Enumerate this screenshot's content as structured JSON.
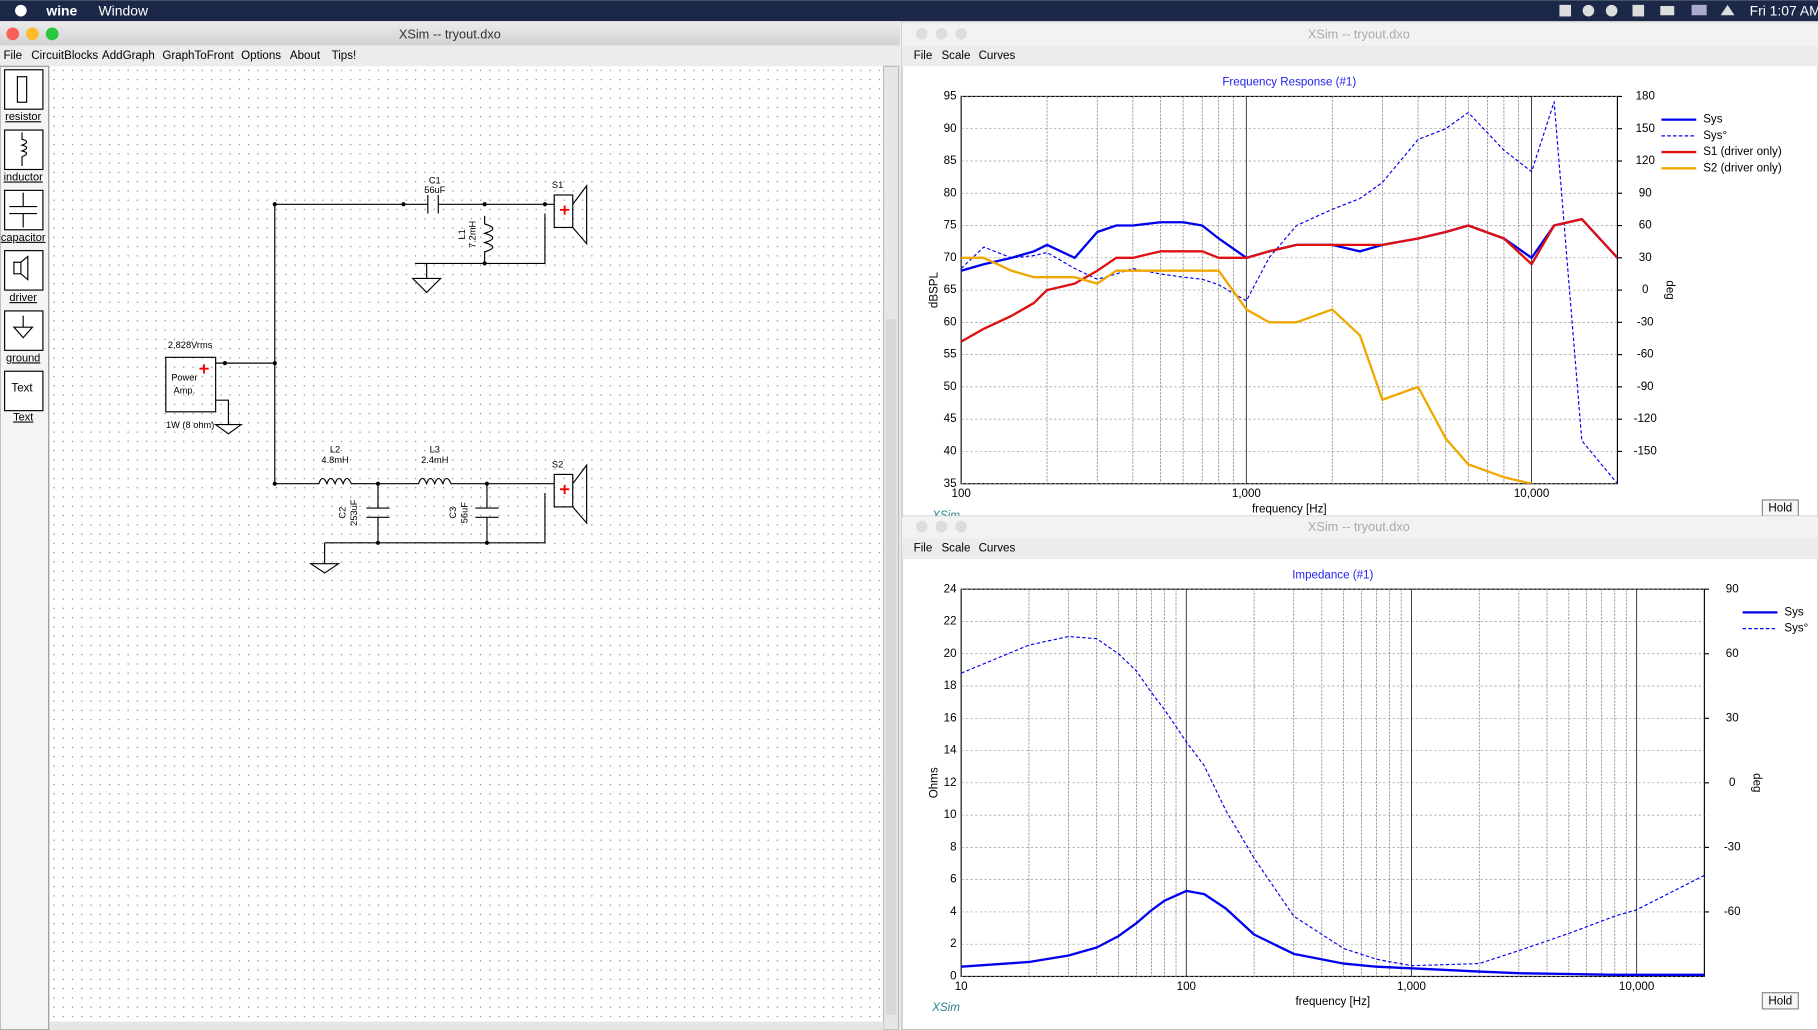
{
  "menubar": {
    "app": "wine",
    "items": [
      "Window"
    ],
    "clock": "Fri 1:07 AM"
  },
  "schematic_window": {
    "title": "XSim -- tryout.dxo",
    "menu": [
      "File",
      "CircuitBlocks",
      "AddGraph",
      "GraphToFront",
      "Options",
      "About",
      "Tips!"
    ],
    "palette": [
      "resistor",
      "inductor",
      "capacitor",
      "driver",
      "ground",
      "Text"
    ],
    "palette_text_icon": "Text",
    "components": {
      "c1": {
        "label": "C1",
        "value": "56uF"
      },
      "l1": {
        "label": "L1",
        "value": "7.2mH"
      },
      "s1": {
        "label": "S1"
      },
      "l2": {
        "label": "L2",
        "value": "4.8mH"
      },
      "l3": {
        "label": "L3",
        "value": "2.4mH"
      },
      "c2": {
        "label": "C2",
        "value": "253uF"
      },
      "c3": {
        "label": "C3",
        "value": "56uF"
      },
      "s2": {
        "label": "S2"
      }
    },
    "source": {
      "voltage": "2.828Vrms",
      "label_line1": "Power",
      "label_line2": "Amp.",
      "load": "1W (8 ohm)"
    }
  },
  "graph_windows": [
    {
      "title": "XSim -- tryout.dxo",
      "menu": [
        "File",
        "Scale",
        "Curves"
      ],
      "button": "Hold",
      "watermark": "XSim"
    },
    {
      "title": "XSim -- tryout.dxo",
      "menu": [
        "File",
        "Scale",
        "Curves"
      ],
      "button": "Hold",
      "watermark": "XSim"
    }
  ],
  "chart_data": [
    {
      "type": "line",
      "title": "Frequency Response (#1)",
      "x_label": "frequency [Hz]",
      "y_label": "dBSPL",
      "y2_label": "deg",
      "log_x": true,
      "grid": true,
      "legend": "right",
      "xlim": [
        100,
        20000
      ],
      "xticks": [
        100,
        {
          "value": 1000,
          "label": "1,000"
        },
        {
          "value": 10000,
          "label": "10,000"
        }
      ],
      "ylim": [
        35,
        95
      ],
      "yticks": [
        35,
        40,
        45,
        50,
        55,
        60,
        65,
        70,
        75,
        80,
        85,
        90,
        95
      ],
      "y2lim": [
        -180,
        180
      ],
      "y2ticks": [
        -150,
        -120,
        -90,
        -60,
        -30,
        0,
        30,
        60,
        90,
        120,
        150,
        180
      ],
      "x": [
        100,
        120,
        150,
        180,
        200,
        250,
        300,
        350,
        400,
        500,
        600,
        700,
        800,
        1000,
        1200,
        1500,
        2000,
        2500,
        3000,
        4000,
        5000,
        6000,
        8000,
        10000,
        12000,
        15000,
        20000
      ],
      "series": [
        {
          "name": "Sys",
          "color": "#0000ee",
          "width": 2,
          "values": [
            68,
            69,
            70,
            71,
            72,
            70,
            74,
            75,
            75,
            75.5,
            75.5,
            75,
            73,
            70,
            71,
            72,
            72,
            71,
            72,
            73,
            74,
            75,
            73,
            70,
            75,
            76,
            70
          ]
        },
        {
          "name": "Sys°",
          "color": "#0000ee",
          "dashed": true,
          "axis": "y2",
          "values": [
            20,
            40,
            30,
            32,
            35,
            20,
            10,
            15,
            20,
            15,
            12,
            10,
            5,
            -10,
            30,
            60,
            75,
            85,
            100,
            140,
            150,
            165,
            130,
            110,
            175,
            -140,
            -180
          ]
        },
        {
          "name": "S1 (driver only)",
          "color": "#e01010",
          "width": 2,
          "values": [
            57,
            59,
            61,
            63,
            65,
            66,
            68,
            70,
            70,
            71,
            71,
            71,
            70,
            70,
            71,
            72,
            72,
            72,
            72,
            73,
            74,
            75,
            73,
            69,
            75,
            76,
            70
          ]
        },
        {
          "name": "S2 (driver only)",
          "color": "#f0a800",
          "width": 2,
          "values": [
            70,
            70,
            68,
            67,
            67,
            67,
            66,
            68,
            68,
            68,
            68,
            68,
            68,
            62,
            60,
            60,
            62,
            58,
            48,
            50,
            42,
            38,
            36,
            35,
            null,
            null,
            null
          ]
        }
      ]
    },
    {
      "type": "line",
      "title": "Impedance (#1)",
      "x_label": "frequency [Hz]",
      "y_label": "Ohms",
      "y2_label": "deg",
      "log_x": true,
      "grid": true,
      "legend": "right",
      "xlim": [
        10,
        20000
      ],
      "xticks": [
        10,
        100,
        {
          "value": 1000,
          "label": "1,000"
        },
        {
          "value": 10000,
          "label": "10,000"
        }
      ],
      "ylim": [
        0,
        24
      ],
      "yticks": [
        0,
        2,
        4,
        6,
        8,
        10,
        12,
        14,
        16,
        18,
        20,
        22,
        24
      ],
      "y2lim": [
        -90,
        90
      ],
      "y2ticks": [
        -60,
        -30,
        0,
        30,
        60,
        90
      ],
      "x": [
        10,
        20,
        30,
        40,
        50,
        60,
        70,
        80,
        100,
        120,
        150,
        200,
        300,
        500,
        700,
        1000,
        2000,
        3000,
        5000,
        8000,
        10000,
        20000
      ],
      "series": [
        {
          "name": "Sys",
          "color": "#0000ee",
          "width": 2,
          "values": [
            0.6,
            0.9,
            1.3,
            1.8,
            2.5,
            3.3,
            4.1,
            4.7,
            5.3,
            5.1,
            4.2,
            2.6,
            1.4,
            0.8,
            0.6,
            0.5,
            0.3,
            0.2,
            0.15,
            0.1,
            0.1,
            0.1
          ]
        },
        {
          "name": "Sys°",
          "color": "#0000ee",
          "dashed": true,
          "axis": "y2",
          "values": [
            51,
            64,
            68,
            67,
            60,
            52,
            42,
            34,
            19,
            8,
            -13,
            -35,
            -62,
            -77,
            -82,
            -85,
            -84,
            -78,
            -70,
            -62,
            -59,
            -43
          ]
        }
      ]
    }
  ]
}
